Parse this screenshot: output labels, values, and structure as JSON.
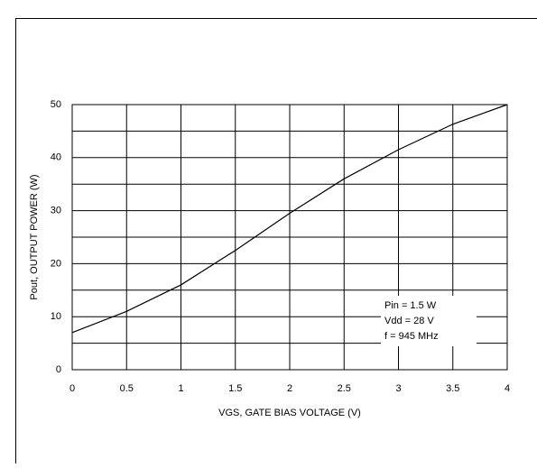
{
  "chart_data": {
    "type": "line",
    "x_label": "VGS, GATE BIAS VOLTAGE (V)",
    "y_label": "Pout, OUTPUT POWER (W)",
    "annotations": [
      "Pin = 1.5 W",
      "Vdd = 28 V",
      "f = 945 MHz"
    ],
    "x": [
      0,
      0.5,
      1,
      1.5,
      2,
      2.5,
      3,
      3.5,
      4
    ],
    "series": [
      {
        "color": "#000000",
        "values": [
          7,
          11,
          16,
          22.5,
          29.5,
          36,
          41.5,
          46.3,
          50
        ]
      }
    ],
    "xlim": [
      0,
      4
    ],
    "xticks": [
      0,
      0.5,
      1,
      1.5,
      2,
      2.5,
      3,
      3.5,
      4
    ],
    "ylim": [
      0,
      50
    ],
    "yticks": [
      0,
      10,
      20,
      30,
      40,
      50
    ],
    "y_minor_ticks": [
      5,
      15,
      25,
      35,
      45
    ],
    "grid": true
  }
}
